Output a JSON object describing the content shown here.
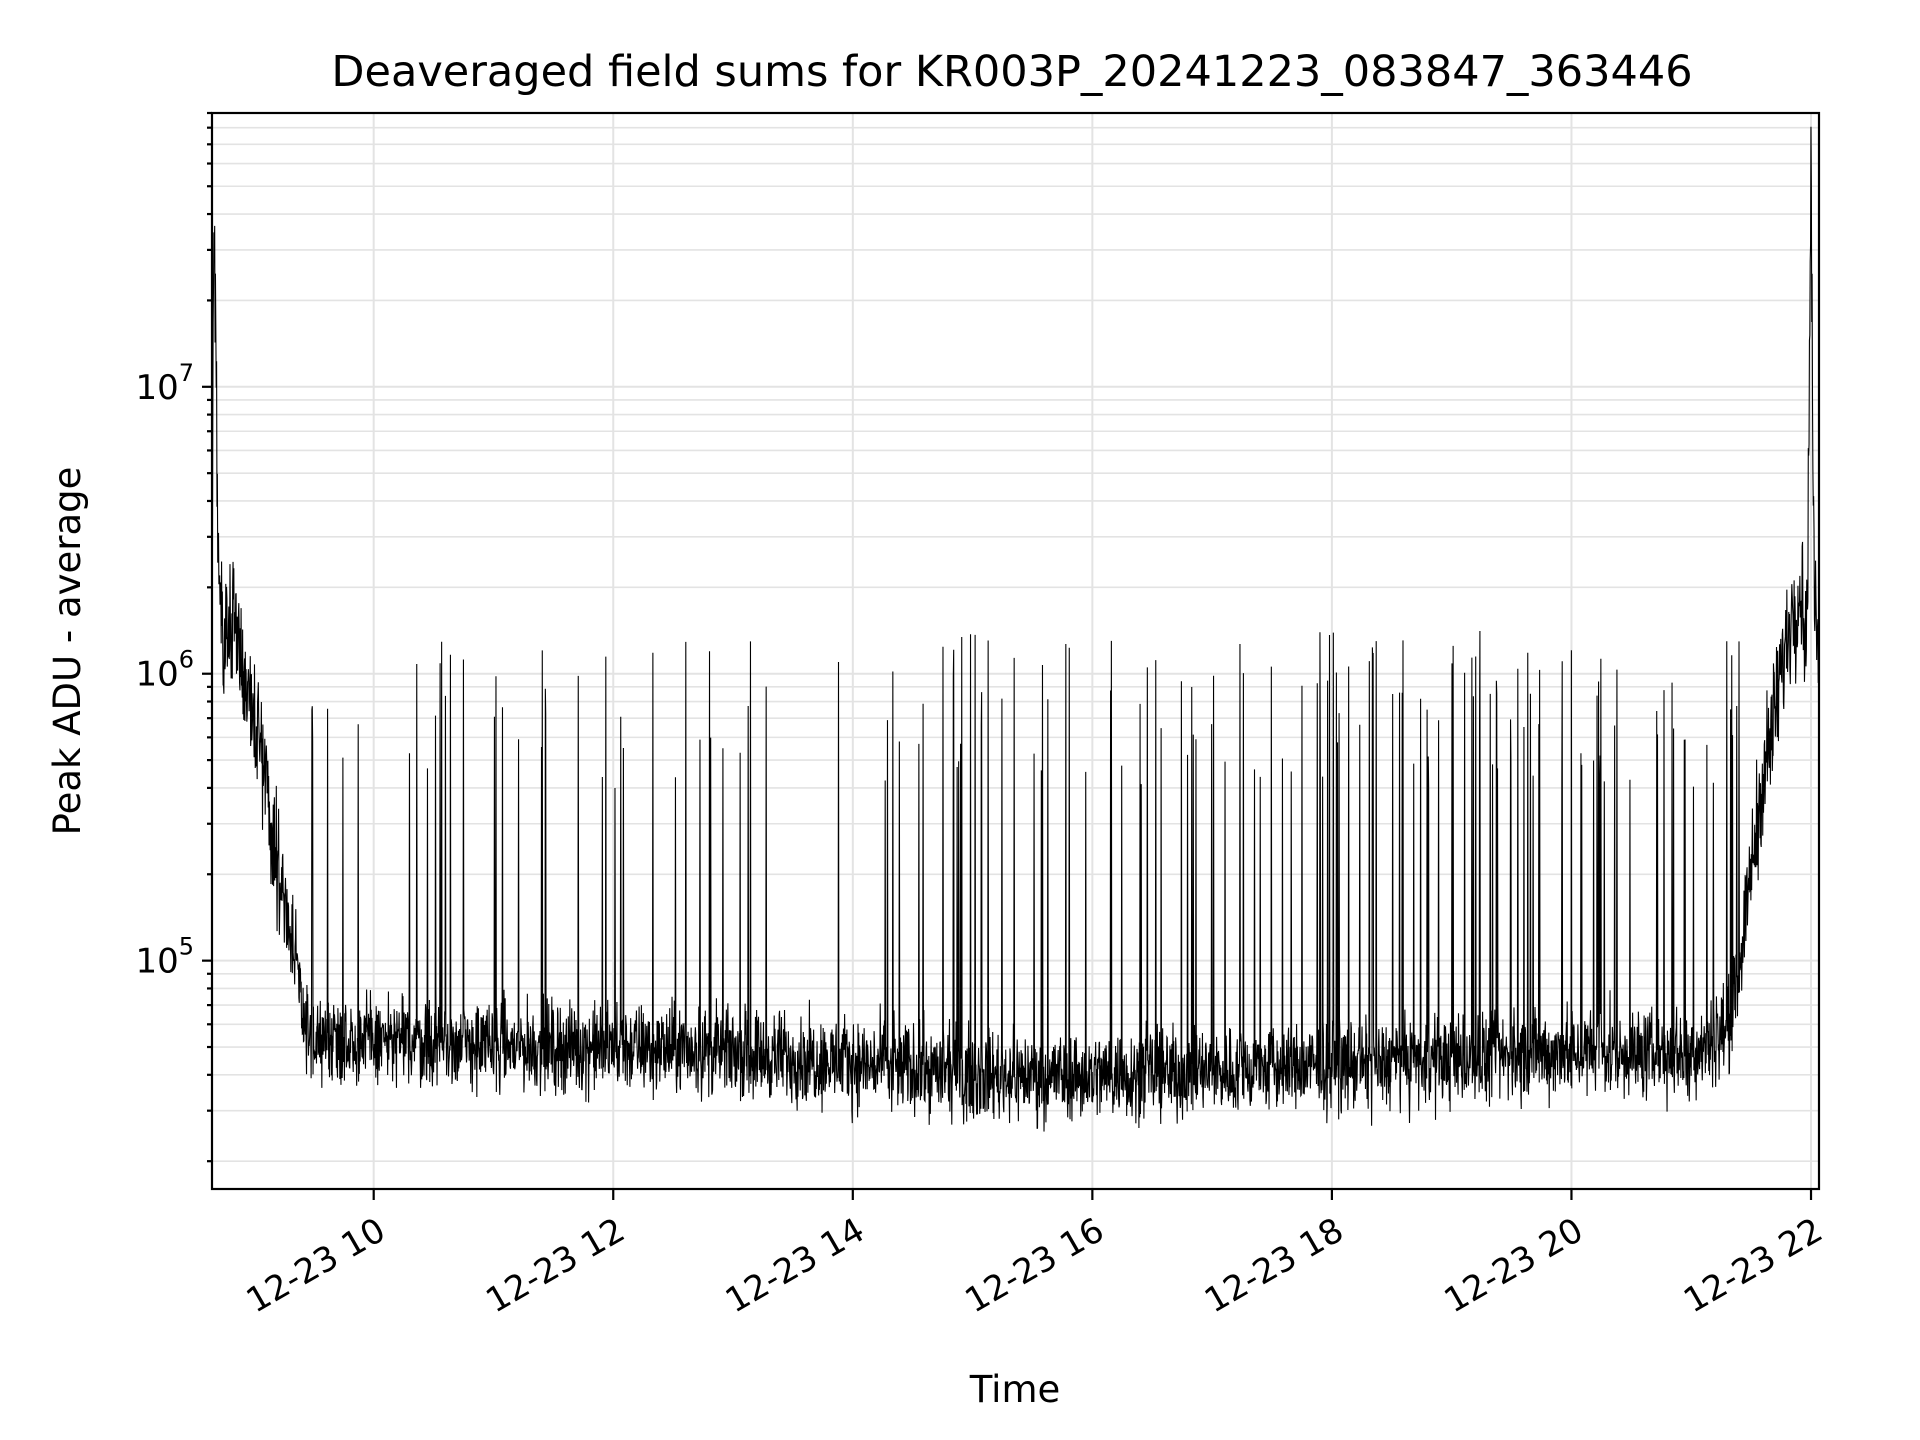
{
  "chart_data": {
    "type": "line",
    "title": "Deaveraged field sums for KR003P_20241223_083847_363446",
    "xlabel": "Time",
    "ylabel": "Peak ADU - average",
    "yscale": "log",
    "grid": true,
    "grid_minor": true,
    "legend": "none",
    "line_color": "#000000",
    "xlim": [
      "2024-12-23 08:39",
      "2024-12-23 22:04"
    ],
    "ylim": [
      16000,
      90000000
    ],
    "x_ticks": [
      {
        "value": "2024-12-23 10:00",
        "label": "12-23 10"
      },
      {
        "value": "2024-12-23 12:00",
        "label": "12-23 12"
      },
      {
        "value": "2024-12-23 14:00",
        "label": "12-23 14"
      },
      {
        "value": "2024-12-23 16:00",
        "label": "12-23 16"
      },
      {
        "value": "2024-12-23 18:00",
        "label": "12-23 18"
      },
      {
        "value": "2024-12-23 20:00",
        "label": "12-23 20"
      },
      {
        "value": "2024-12-23 22:00",
        "label": "12-23 22"
      }
    ],
    "y_ticks": [
      {
        "value": 100000,
        "base": "10",
        "exp": "5"
      },
      {
        "value": 1000000,
        "base": "10",
        "exp": "6"
      },
      {
        "value": 10000000,
        "base": "10",
        "exp": "7"
      }
    ],
    "series": [
      {
        "x": [
          "2024-12-23 08:39",
          "2024-12-23 08:40",
          "2024-12-23 08:42",
          "2024-12-23 08:45",
          "2024-12-23 08:50",
          "2024-12-23 08:55",
          "2024-12-23 09:00",
          "2024-12-23 09:05",
          "2024-12-23 09:10",
          "2024-12-23 09:15",
          "2024-12-23 09:20",
          "2024-12-23 09:25",
          "2024-12-23 09:30",
          "2024-12-23 09:40",
          "2024-12-23 09:50",
          "2024-12-23 10:00",
          "2024-12-23 10:30",
          "2024-12-23 11:00",
          "2024-12-23 12:00",
          "2024-12-23 13:00",
          "2024-12-23 14:00",
          "2024-12-23 15:00",
          "2024-12-23 16:00",
          "2024-12-23 17:00",
          "2024-12-23 18:00",
          "2024-12-23 19:00",
          "2024-12-23 20:00",
          "2024-12-23 20:30",
          "2024-12-23 21:00",
          "2024-12-23 21:20",
          "2024-12-23 21:30",
          "2024-12-23 21:35",
          "2024-12-23 21:40",
          "2024-12-23 21:45",
          "2024-12-23 21:50",
          "2024-12-23 21:55",
          "2024-12-23 21:58",
          "2024-12-23 22:00",
          "2024-12-23 22:01",
          "2024-12-23 22:02",
          "2024-12-23 22:03",
          "2024-12-23 22:04"
        ],
        "y": [
          1200000,
          48000000,
          2500000,
          1300000,
          1700000,
          1000000,
          700000,
          500000,
          250000,
          170000,
          110000,
          60000,
          50000,
          55000,
          52000,
          53000,
          52000,
          50000,
          50000,
          48000,
          44000,
          40000,
          40000,
          41000,
          43000,
          45000,
          48000,
          47000,
          48000,
          60000,
          200000,
          400000,
          600000,
          1000000,
          1600000,
          2000000,
          1300000,
          60000000,
          5000000,
          1400000,
          1600000,
          900000
        ]
      }
    ]
  }
}
